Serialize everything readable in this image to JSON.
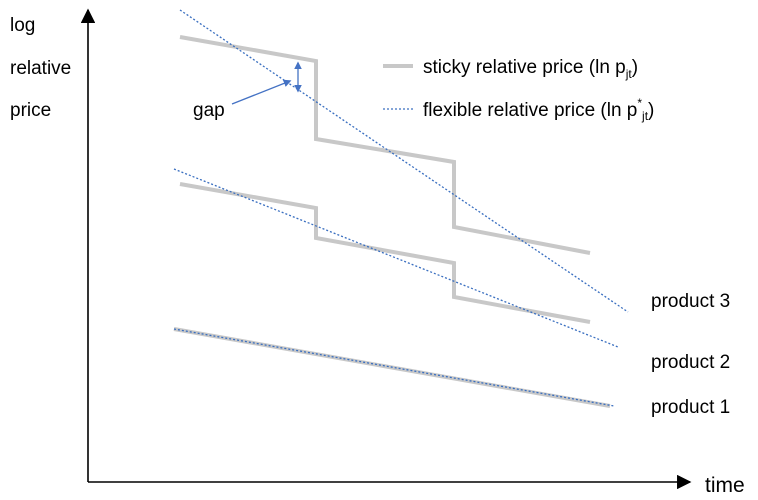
{
  "axes": {
    "y_label_lines": [
      "log",
      "relative",
      "price"
    ],
    "x_label": "time"
  },
  "legend": {
    "sticky": {
      "text": "sticky relative price (ln p",
      "sub": "jt",
      "close": ")"
    },
    "flexible": {
      "text": "flexible relative price (ln p",
      "sup": "*",
      "sub": "jt",
      "close": ")"
    }
  },
  "annotations": {
    "gap": "gap"
  },
  "products": [
    {
      "label": "product 3"
    },
    {
      "label": "product 2"
    },
    {
      "label": "product 1"
    }
  ],
  "colors": {
    "sticky_line": "#c8c8c8",
    "flexible_line": "#3a6fc0",
    "axis": "#000000",
    "gap_arrow": "#4472c4"
  }
}
